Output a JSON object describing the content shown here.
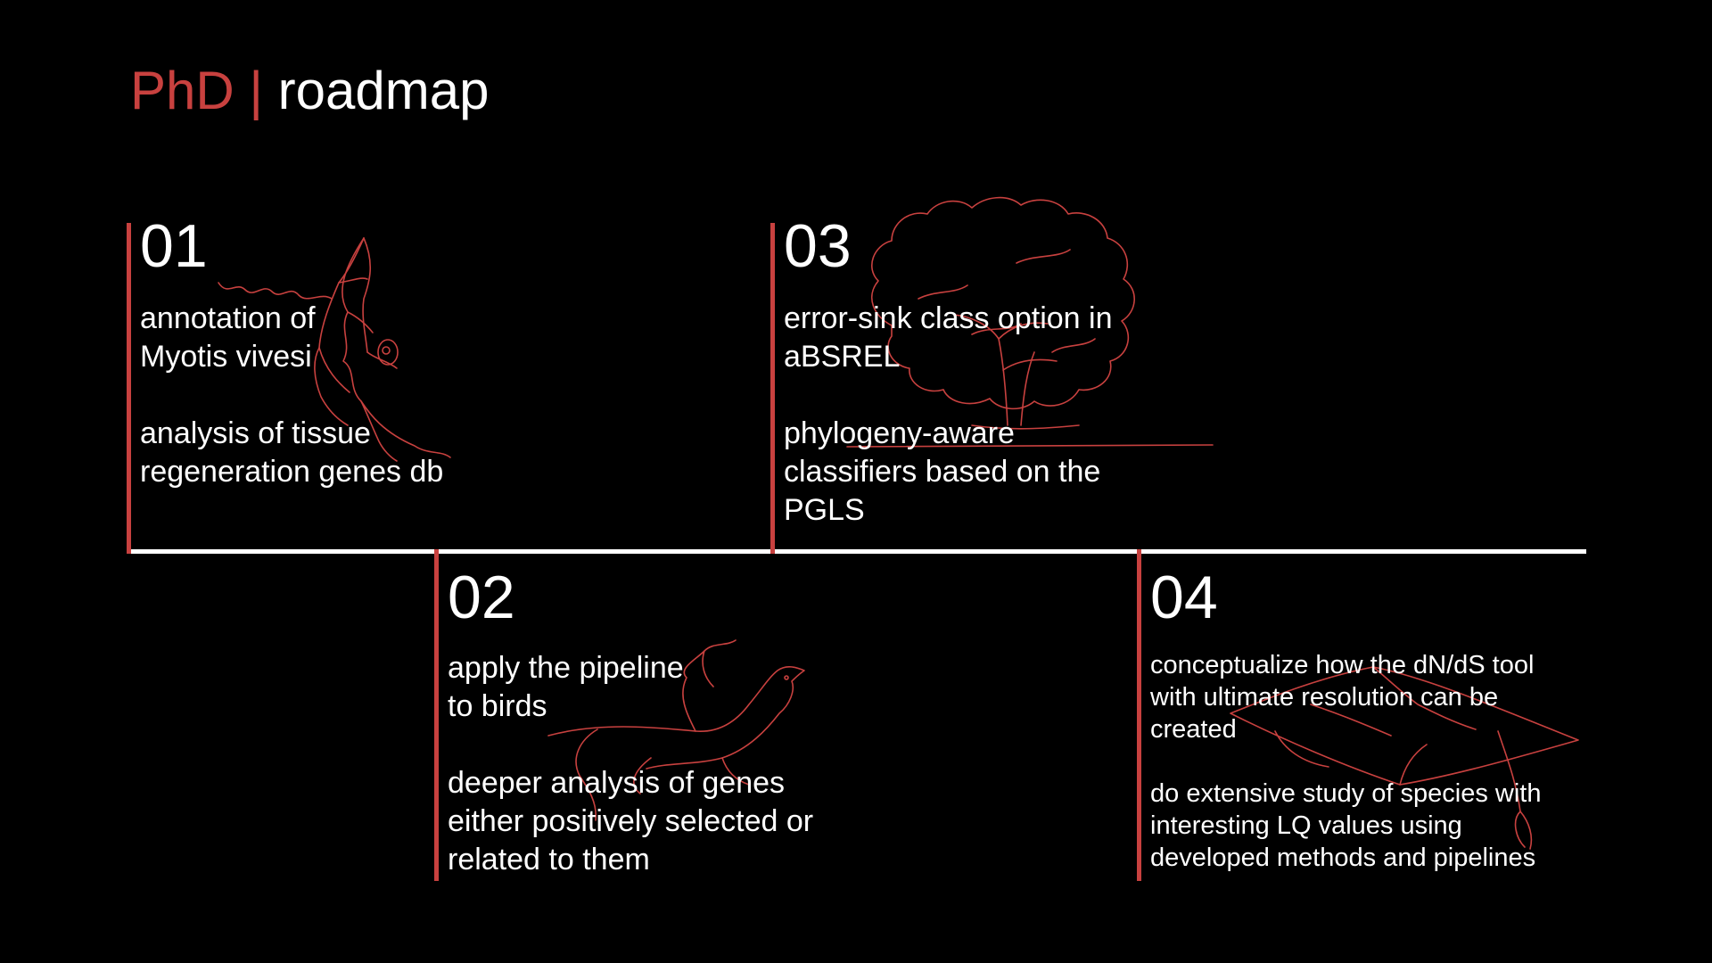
{
  "title": {
    "accent": "PhD",
    "divider": "|",
    "rest": "roadmap"
  },
  "colors": {
    "background": "#000000",
    "accent": "#c8413f",
    "text": "#ffffff",
    "timeline": "#ffffff"
  },
  "steps": [
    {
      "number": "01",
      "lines_a": [
        "annotation of",
        "Myotis vivesi"
      ],
      "lines_b": [
        "analysis of tissue",
        "regeneration genes db"
      ],
      "icon": "bat-icon"
    },
    {
      "number": "02",
      "lines_a": [
        "apply the pipeline",
        "to birds"
      ],
      "lines_b": [
        "deeper analysis of genes",
        "either positively selected or",
        "related to them"
      ],
      "icon": "bird-icon"
    },
    {
      "number": "03",
      "lines_a": [
        "error-sink class option in",
        "aBSREL"
      ],
      "lines_b": [
        "phylogeny-aware",
        "classifiers based on the",
        "PGLS"
      ],
      "icon": "tree-icon"
    },
    {
      "number": "04",
      "lines_a": [
        "conceptualize how the dN/dS tool",
        "with ultimate resolution can be",
        "created"
      ],
      "lines_b": [
        "do extensive study of species with",
        "interesting LQ values using",
        "developed methods and pipelines"
      ],
      "icon": "graduation-cap-icon"
    }
  ]
}
